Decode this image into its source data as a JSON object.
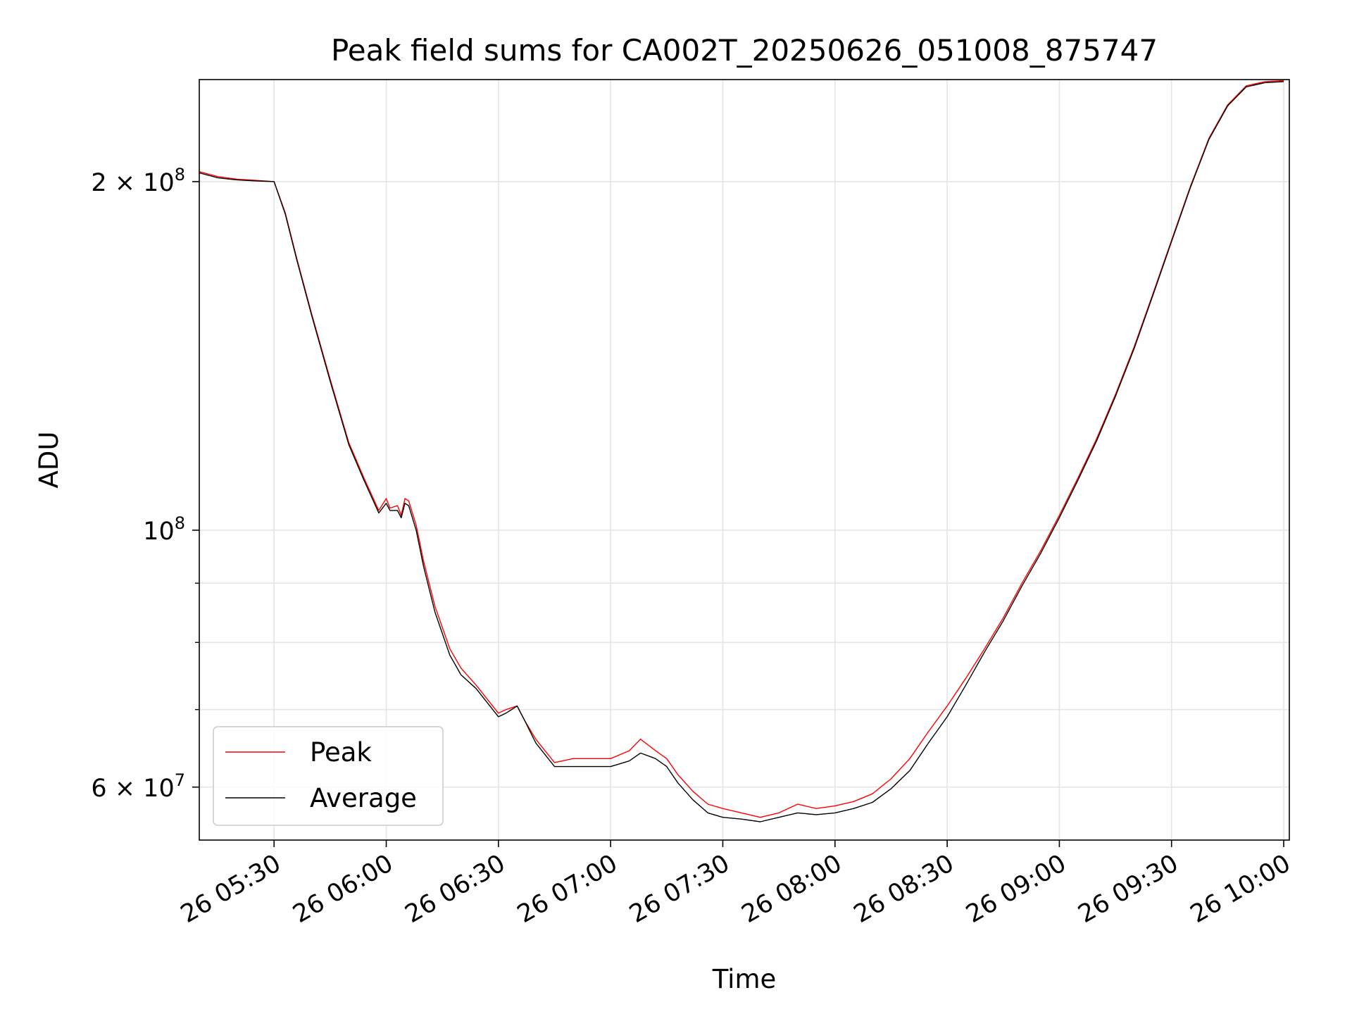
{
  "chart_data": {
    "type": "line",
    "title": "Peak field sums for CA002T_20250626_051008_875747",
    "xlabel": "Time",
    "ylabel": "ADU",
    "yscale": "log",
    "ylim": [
      54000000,
      245000000
    ],
    "xlim": [
      "2025-06-26 05:10:00",
      "2025-06-26 10:01:30"
    ],
    "grid": true,
    "legend_position": "lower-left",
    "x_ticks": [
      {
        "value": "2025-06-26 05:30",
        "label": "26 05:30"
      },
      {
        "value": "2025-06-26 06:00",
        "label": "26 06:00"
      },
      {
        "value": "2025-06-26 06:30",
        "label": "26 06:30"
      },
      {
        "value": "2025-06-26 07:00",
        "label": "26 07:00"
      },
      {
        "value": "2025-06-26 07:30",
        "label": "26 07:30"
      },
      {
        "value": "2025-06-26 08:00",
        "label": "26 08:00"
      },
      {
        "value": "2025-06-26 08:30",
        "label": "26 08:30"
      },
      {
        "value": "2025-06-26 09:00",
        "label": "26 09:00"
      },
      {
        "value": "2025-06-26 09:30",
        "label": "26 09:30"
      },
      {
        "value": "2025-06-26 10:00",
        "label": "26 10:00"
      }
    ],
    "y_major_ticks": [
      {
        "value": 60000000,
        "mantissa": "6",
        "exponent": "7"
      },
      {
        "value": 100000000,
        "mantissa": "",
        "exponent": "8"
      },
      {
        "value": 200000000,
        "mantissa": "2",
        "exponent": "8"
      }
    ],
    "y_minor_ticks": [
      70000000,
      80000000,
      90000000
    ],
    "series": [
      {
        "name": "Peak",
        "color": "#ff0000",
        "x": [
          "2025-06-26 05:10",
          "2025-06-26 05:15",
          "2025-06-26 05:20",
          "2025-06-26 05:25",
          "2025-06-26 05:30",
          "2025-06-26 05:33",
          "2025-06-26 05:36",
          "2025-06-26 05:40",
          "2025-06-26 05:45",
          "2025-06-26 05:50",
          "2025-06-26 05:54",
          "2025-06-26 05:58",
          "2025-06-26 06:00",
          "2025-06-26 06:01",
          "2025-06-26 06:03",
          "2025-06-26 06:04",
          "2025-06-26 06:05",
          "2025-06-26 06:06",
          "2025-06-26 06:08",
          "2025-06-26 06:10",
          "2025-06-26 06:13",
          "2025-06-26 06:17",
          "2025-06-26 06:20",
          "2025-06-26 06:24",
          "2025-06-26 06:30",
          "2025-06-26 06:32",
          "2025-06-26 06:35",
          "2025-06-26 06:37",
          "2025-06-26 06:40",
          "2025-06-26 06:45",
          "2025-06-26 06:50",
          "2025-06-26 06:55",
          "2025-06-26 07:00",
          "2025-06-26 07:05",
          "2025-06-26 07:08",
          "2025-06-26 07:12",
          "2025-06-26 07:15",
          "2025-06-26 07:18",
          "2025-06-26 07:22",
          "2025-06-26 07:26",
          "2025-06-26 07:30",
          "2025-06-26 07:35",
          "2025-06-26 07:40",
          "2025-06-26 07:45",
          "2025-06-26 07:50",
          "2025-06-26 07:55",
          "2025-06-26 08:00",
          "2025-06-26 08:05",
          "2025-06-26 08:10",
          "2025-06-26 08:15",
          "2025-06-26 08:20",
          "2025-06-26 08:25",
          "2025-06-26 08:30",
          "2025-06-26 08:35",
          "2025-06-26 08:40",
          "2025-06-26 08:45",
          "2025-06-26 08:50",
          "2025-06-26 08:55",
          "2025-06-26 09:00",
          "2025-06-26 09:05",
          "2025-06-26 09:10",
          "2025-06-26 09:15",
          "2025-06-26 09:20",
          "2025-06-26 09:25",
          "2025-06-26 09:30",
          "2025-06-26 09:35",
          "2025-06-26 09:40",
          "2025-06-26 09:45",
          "2025-06-26 09:50",
          "2025-06-26 09:55",
          "2025-06-26 10:00"
        ],
        "y": [
          204000000,
          202000000,
          201000000,
          200500000,
          200000000,
          188000000,
          172000000,
          154000000,
          135000000,
          119000000,
          111000000,
          104000000,
          106500000,
          104500000,
          105000000,
          103000000,
          106500000,
          106000000,
          101000000,
          94000000,
          86000000,
          79000000,
          76000000,
          73500000,
          69500000,
          70000000,
          70500000,
          68500000,
          66000000,
          63000000,
          63500000,
          63500000,
          63500000,
          64500000,
          66000000,
          64500000,
          63500000,
          61500000,
          59500000,
          58000000,
          57500000,
          57000000,
          56500000,
          57000000,
          58000000,
          57500000,
          57800000,
          58300000,
          59200000,
          61000000,
          63500000,
          67000000,
          70500000,
          74500000,
          79000000,
          84000000,
          90000000,
          96000000,
          103000000,
          111000000,
          120000000,
          131000000,
          144000000,
          160000000,
          178000000,
          198000000,
          218000000,
          233000000,
          242000000,
          244000000,
          244500000
        ]
      },
      {
        "name": "Average",
        "color": "#000000",
        "x": [
          "2025-06-26 05:10",
          "2025-06-26 05:15",
          "2025-06-26 05:20",
          "2025-06-26 05:25",
          "2025-06-26 05:30",
          "2025-06-26 05:33",
          "2025-06-26 05:36",
          "2025-06-26 05:40",
          "2025-06-26 05:45",
          "2025-06-26 05:50",
          "2025-06-26 05:54",
          "2025-06-26 05:58",
          "2025-06-26 06:00",
          "2025-06-26 06:01",
          "2025-06-26 06:03",
          "2025-06-26 06:04",
          "2025-06-26 06:05",
          "2025-06-26 06:06",
          "2025-06-26 06:08",
          "2025-06-26 06:10",
          "2025-06-26 06:13",
          "2025-06-26 06:17",
          "2025-06-26 06:20",
          "2025-06-26 06:24",
          "2025-06-26 06:30",
          "2025-06-26 06:32",
          "2025-06-26 06:35",
          "2025-06-26 06:37",
          "2025-06-26 06:40",
          "2025-06-26 06:45",
          "2025-06-26 06:50",
          "2025-06-26 06:55",
          "2025-06-26 07:00",
          "2025-06-26 07:05",
          "2025-06-26 07:08",
          "2025-06-26 07:12",
          "2025-06-26 07:15",
          "2025-06-26 07:18",
          "2025-06-26 07:22",
          "2025-06-26 07:26",
          "2025-06-26 07:30",
          "2025-06-26 07:35",
          "2025-06-26 07:40",
          "2025-06-26 07:45",
          "2025-06-26 07:50",
          "2025-06-26 07:55",
          "2025-06-26 08:00",
          "2025-06-26 08:05",
          "2025-06-26 08:10",
          "2025-06-26 08:15",
          "2025-06-26 08:20",
          "2025-06-26 08:25",
          "2025-06-26 08:30",
          "2025-06-26 08:35",
          "2025-06-26 08:40",
          "2025-06-26 08:45",
          "2025-06-26 08:50",
          "2025-06-26 08:55",
          "2025-06-26 09:00",
          "2025-06-26 09:05",
          "2025-06-26 09:10",
          "2025-06-26 09:15",
          "2025-06-26 09:20",
          "2025-06-26 09:25",
          "2025-06-26 09:30",
          "2025-06-26 09:35",
          "2025-06-26 09:40",
          "2025-06-26 09:45",
          "2025-06-26 09:50",
          "2025-06-26 09:55",
          "2025-06-26 10:00"
        ],
        "y": [
          203500000,
          201500000,
          200700000,
          200300000,
          200000000,
          187500000,
          171500000,
          153500000,
          134500000,
          118500000,
          110500000,
          103500000,
          105500000,
          104000000,
          104000000,
          102500000,
          105500000,
          105000000,
          100000000,
          93000000,
          85000000,
          78000000,
          75000000,
          73000000,
          69000000,
          69500000,
          70500000,
          68500000,
          65500000,
          62500000,
          62500000,
          62500000,
          62500000,
          63200000,
          64200000,
          63500000,
          62500000,
          60500000,
          58500000,
          57000000,
          56500000,
          56300000,
          56000000,
          56500000,
          57000000,
          56800000,
          57000000,
          57500000,
          58200000,
          59800000,
          62000000,
          65500000,
          69000000,
          73500000,
          78500000,
          83500000,
          89500000,
          95500000,
          102500000,
          110500000,
          119500000,
          130500000,
          143500000,
          159500000,
          177500000,
          197500000,
          217500000,
          232500000,
          241500000,
          243500000,
          244000000
        ]
      }
    ]
  }
}
